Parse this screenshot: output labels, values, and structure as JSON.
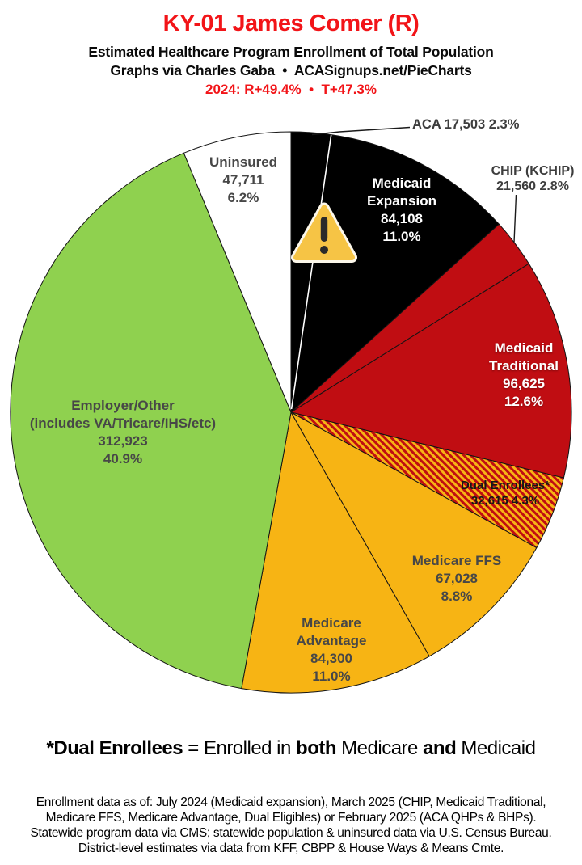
{
  "header": {
    "title": "KY-01 James Comer (R)",
    "title_color": "#f21418",
    "subtitle1": "Estimated Healthcare Program Enrollment of Total Population",
    "subtitle2": "Graphs via Charles Gaba  •  ACASignups.net/PieCharts",
    "stats_line": "2024: R+49.4%  •  T+47.3%",
    "stats_color": "#f21418"
  },
  "chart_data": {
    "type": "pie",
    "title": "Estimated Healthcare Program Enrollment of Total Population",
    "start_angle_deg": 0,
    "direction": "clockwise",
    "legend_position": "labels-on-slices",
    "slices": [
      {
        "id": "aca",
        "label": "ACA",
        "value": 17503,
        "value_display": "17,503",
        "pct": 2.3,
        "pct_display": "2.3%",
        "color": "#000000",
        "label_placement": "outside"
      },
      {
        "id": "medicaid-expansion",
        "label": "Medicaid Expansion",
        "label_lines": [
          "Medicaid",
          "Expansion"
        ],
        "value": 84108,
        "value_display": "84,108",
        "pct": 11.0,
        "pct_display": "11.0%",
        "color": "#000000",
        "text_color": "#ffffff"
      },
      {
        "id": "chip",
        "label": "CHIP (KCHIP)",
        "value": 21560,
        "value_display": "21,560",
        "pct": 2.8,
        "pct_display": "2.8%",
        "color": "#c00d12",
        "label_placement": "outside"
      },
      {
        "id": "medicaid-traditional",
        "label": "Medicaid Traditional",
        "label_lines": [
          "Medicaid",
          "Traditional"
        ],
        "value": 96625,
        "value_display": "96,625",
        "pct": 12.6,
        "pct_display": "12.6%",
        "color": "#c00d12",
        "text_color": "#ffffff"
      },
      {
        "id": "dual-enrollees",
        "label": "Dual Enrollees*",
        "value": 32615,
        "value_display": "32,615",
        "pct": 4.3,
        "pct_display": "4.3%",
        "color": "#f7b414",
        "hatch": true,
        "hatch_color": "#c00d12",
        "text_color": "#161616"
      },
      {
        "id": "medicare-ffs",
        "label": "Medicare FFS",
        "value": 67028,
        "value_display": "67,028",
        "pct": 8.8,
        "pct_display": "8.8%",
        "color": "#f7b414",
        "text_color": "#474747"
      },
      {
        "id": "medicare-advantage",
        "label": "Medicare Advantage",
        "label_lines": [
          "Medicare",
          "Advantage"
        ],
        "value": 84300,
        "value_display": "84,300",
        "pct": 11.0,
        "pct_display": "11.0%",
        "color": "#f7b414",
        "text_color": "#474747"
      },
      {
        "id": "employer-other",
        "label": "Employer/Other (includes VA/Tricare/IHS/etc)",
        "label_lines": [
          "Employer/Other",
          "(includes VA/Tricare/IHS/etc)"
        ],
        "value": 312923,
        "value_display": "312,923",
        "pct": 40.9,
        "pct_display": "40.9%",
        "color": "#8fd14f",
        "text_color": "#474747"
      },
      {
        "id": "uninsured",
        "label": "Uninsured",
        "value": 47711,
        "value_display": "47,711",
        "pct": 6.2,
        "pct_display": "6.2%",
        "color": "#ffffff",
        "text_color": "#474747"
      }
    ],
    "slice_border_color": "#141414",
    "aca_divider_color": "#ffffff"
  },
  "annotations": {
    "warning_icon": "warning-triangle-emoji"
  },
  "footer": {
    "note_segments": [
      {
        "text": "*Dual Enrollees",
        "bold": true
      },
      {
        "text": " = Enrolled in ",
        "bold": false
      },
      {
        "text": "both",
        "bold": true
      },
      {
        "text": " Medicare ",
        "bold": false
      },
      {
        "text": "and",
        "bold": true
      },
      {
        "text": " Medicaid",
        "bold": false
      }
    ],
    "lines": [
      "Enrollment data as of: July 2024 (Medicaid expansion), March 2025 (CHIP, Medicaid Traditional,",
      "Medicare FFS, Medicare Advantage, Dual Eligibles) or February 2025 (ACA QHPs & BHPs).",
      "Statewide program data via CMS; statewide population & uninsured data via U.S. Census Bureau.",
      "District-level estimates via data from KFF, CBPP & House Ways & Means Cmte."
    ]
  }
}
